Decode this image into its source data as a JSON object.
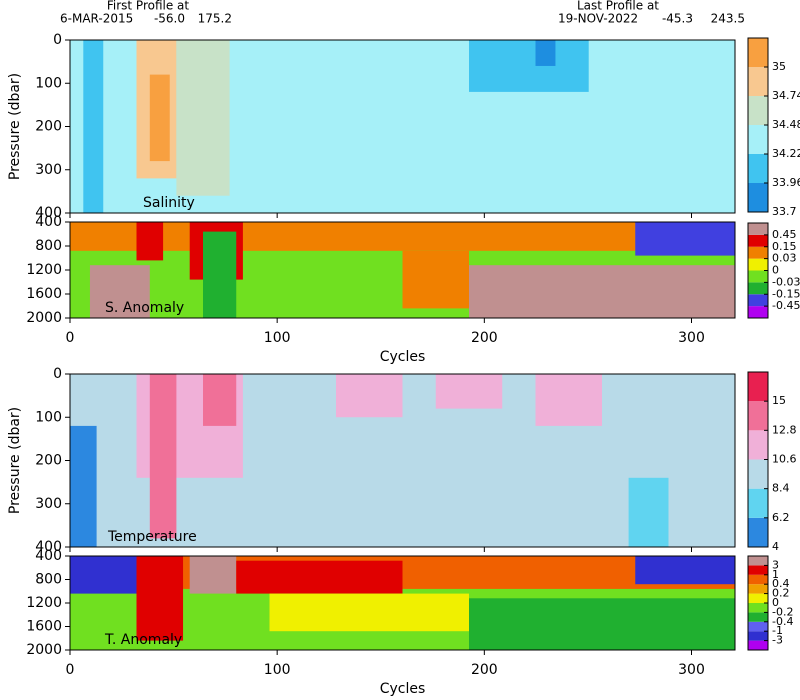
{
  "header": {
    "first_title": "First Profile at",
    "first_date": "6-MAR-2015",
    "first_lat": "-56.0",
    "first_lon": "175.2",
    "last_title": "Last Profile at",
    "last_date": "19-NOV-2022",
    "last_lat": "-45.3",
    "last_lon": "243.5"
  },
  "chart_data": [
    {
      "type": "heatmap",
      "label": "Salinity",
      "ylabel": "Pressure (dbar)",
      "xlim": [
        0,
        321
      ],
      "xticks": [
        0,
        100,
        200,
        300
      ],
      "ylim": [
        400,
        0
      ],
      "yticks": [
        0,
        100,
        200,
        300,
        400
      ],
      "colorbar": {
        "ticks": [
          33.7,
          33.96,
          34.22,
          34.48,
          34.74,
          35
        ],
        "colors": [
          "#1e8ee0",
          "#40c4f0",
          "#a6f0f8",
          "#c8e2c8",
          "#f8c890",
          "#f8a040"
        ]
      }
    },
    {
      "type": "heatmap",
      "label": "S. Anomaly",
      "xlabel": "Cycles",
      "xlim": [
        0,
        321
      ],
      "xticks": [
        0,
        100,
        200,
        300
      ],
      "ylim": [
        2000,
        400
      ],
      "yticks": [
        400,
        800,
        1200,
        1600,
        2000
      ],
      "colorbar": {
        "ticks": [
          -0.45,
          -0.15,
          -0.03,
          0,
          0.03,
          0.15,
          0.45
        ],
        "colors": [
          "#b000f0",
          "#4040e0",
          "#20b030",
          "#70e020",
          "#f0f000",
          "#f08000",
          "#e00000",
          "#c09090"
        ]
      }
    },
    {
      "type": "heatmap",
      "label": "Temperature",
      "ylabel": "Pressure (dbar)",
      "xlim": [
        0,
        321
      ],
      "xticks": [
        0,
        100,
        200,
        300
      ],
      "ylim": [
        400,
        0
      ],
      "yticks": [
        0,
        100,
        200,
        300,
        400
      ],
      "colorbar": {
        "ticks": [
          4,
          6.2,
          8.4,
          10.6,
          12.8,
          15
        ],
        "colors": [
          "#2c88e0",
          "#60d4f0",
          "#b8dae8",
          "#f0b0d8",
          "#f07098",
          "#e82050"
        ]
      }
    },
    {
      "type": "heatmap",
      "label": "T. Anomaly",
      "xlabel": "Cycles",
      "xlim": [
        0,
        321
      ],
      "xticks": [
        0,
        100,
        200,
        300
      ],
      "ylim": [
        2000,
        400
      ],
      "yticks": [
        400,
        800,
        1200,
        1600,
        2000
      ],
      "colorbar": {
        "ticks": [
          -3,
          -1,
          -0.4,
          -0.2,
          0,
          0.2,
          0.4,
          1,
          3
        ],
        "colors": [
          "#b000f0",
          "#3030d0",
          "#6060f0",
          "#20b030",
          "#70e020",
          "#f0f000",
          "#f0a000",
          "#f06000",
          "#e00000",
          "#c09090"
        ]
      }
    }
  ]
}
